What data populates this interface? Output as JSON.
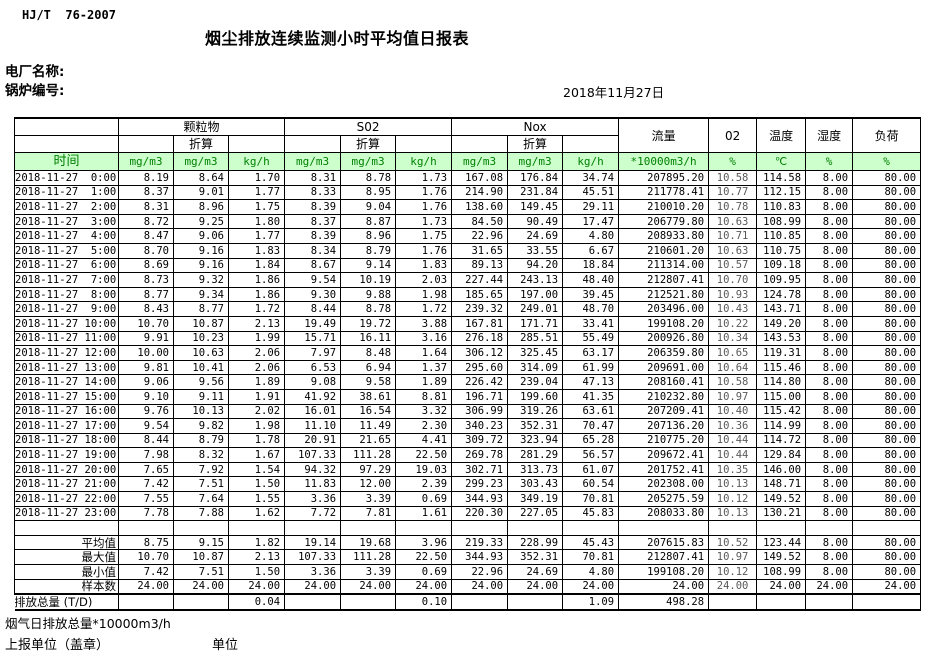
{
  "page": {
    "doc_code": "HJ/T  76-2007",
    "title": "烟尘排放连续监测小时平均值日报表",
    "plant_label": "电厂名称:",
    "boiler_label": "锅炉编号:",
    "date": "2018年11月27日"
  },
  "footer": {
    "total_note": "烟气日排放总量*10000m3/h",
    "report_unit": "上报单位（盖章）",
    "unit": "单位"
  },
  "colors": {
    "header_green_bg": "#ccffcc",
    "header_green_text": "#008000"
  },
  "table": {
    "time_label": "时间",
    "conv_label": "折算",
    "groups": [
      {
        "label": "颗粒物"
      },
      {
        "label": "S02"
      },
      {
        "label": "Nox"
      }
    ],
    "single_cols": [
      {
        "label": "流量"
      },
      {
        "label": "02"
      },
      {
        "label": "温度"
      },
      {
        "label": "湿度"
      },
      {
        "label": "负荷"
      }
    ],
    "units": [
      "mg/m3",
      "mg/m3",
      "kg/h",
      "mg/m3",
      "mg/m3",
      "kg/h",
      "mg/m3",
      "mg/m3",
      "kg/h",
      "*10000m3/h",
      "%",
      "℃",
      "%",
      "%"
    ],
    "rows": [
      {
        "time": "2018-11-27  0:00",
        "values": [
          "8.19",
          "8.64",
          "1.70",
          "8.31",
          "8.78",
          "1.73",
          "167.08",
          "176.84",
          "34.74",
          "207895.20",
          "10.58",
          "114.58",
          "8.00",
          "80.00"
        ]
      },
      {
        "time": "2018-11-27  1:00",
        "values": [
          "8.37",
          "9.01",
          "1.77",
          "8.33",
          "8.95",
          "1.76",
          "214.90",
          "231.84",
          "45.51",
          "211778.41",
          "10.77",
          "112.15",
          "8.00",
          "80.00"
        ]
      },
      {
        "time": "2018-11-27  2:00",
        "values": [
          "8.31",
          "8.96",
          "1.75",
          "8.39",
          "9.04",
          "1.76",
          "138.60",
          "149.45",
          "29.11",
          "210010.20",
          "10.78",
          "110.83",
          "8.00",
          "80.00"
        ]
      },
      {
        "time": "2018-11-27  3:00",
        "values": [
          "8.72",
          "9.25",
          "1.80",
          "8.37",
          "8.87",
          "1.73",
          "84.50",
          "90.49",
          "17.47",
          "206779.80",
          "10.63",
          "108.99",
          "8.00",
          "80.00"
        ]
      },
      {
        "time": "2018-11-27  4:00",
        "values": [
          "8.47",
          "9.06",
          "1.77",
          "8.39",
          "8.96",
          "1.75",
          "22.96",
          "24.69",
          "4.80",
          "208933.80",
          "10.71",
          "110.85",
          "8.00",
          "80.00"
        ]
      },
      {
        "time": "2018-11-27  5:00",
        "values": [
          "8.70",
          "9.16",
          "1.83",
          "8.34",
          "8.79",
          "1.76",
          "31.65",
          "33.55",
          "6.67",
          "210601.20",
          "10.63",
          "110.75",
          "8.00",
          "80.00"
        ]
      },
      {
        "time": "2018-11-27  6:00",
        "values": [
          "8.69",
          "9.16",
          "1.84",
          "8.67",
          "9.14",
          "1.83",
          "89.13",
          "94.20",
          "18.84",
          "211314.00",
          "10.57",
          "109.18",
          "8.00",
          "80.00"
        ]
      },
      {
        "time": "2018-11-27  7:00",
        "values": [
          "8.73",
          "9.32",
          "1.86",
          "9.54",
          "10.19",
          "2.03",
          "227.44",
          "243.13",
          "48.40",
          "212807.41",
          "10.70",
          "109.95",
          "8.00",
          "80.00"
        ]
      },
      {
        "time": "2018-11-27  8:00",
        "values": [
          "8.77",
          "9.34",
          "1.86",
          "9.30",
          "9.88",
          "1.98",
          "185.65",
          "197.00",
          "39.45",
          "212521.80",
          "10.93",
          "124.78",
          "8.00",
          "80.00"
        ]
      },
      {
        "time": "2018-11-27  9:00",
        "values": [
          "8.43",
          "8.77",
          "1.72",
          "8.44",
          "8.78",
          "1.72",
          "239.32",
          "249.01",
          "48.70",
          "203496.00",
          "10.43",
          "143.71",
          "8.00",
          "80.00"
        ]
      },
      {
        "time": "2018-11-27 10:00",
        "values": [
          "10.70",
          "10.87",
          "2.13",
          "19.49",
          "19.72",
          "3.88",
          "167.81",
          "171.71",
          "33.41",
          "199108.20",
          "10.22",
          "149.20",
          "8.00",
          "80.00"
        ]
      },
      {
        "time": "2018-11-27 11:00",
        "values": [
          "9.91",
          "10.23",
          "1.99",
          "15.71",
          "16.11",
          "3.16",
          "276.18",
          "285.51",
          "55.49",
          "200926.80",
          "10.34",
          "143.53",
          "8.00",
          "80.00"
        ]
      },
      {
        "time": "2018-11-27 12:00",
        "values": [
          "10.00",
          "10.63",
          "2.06",
          "7.97",
          "8.48",
          "1.64",
          "306.12",
          "325.45",
          "63.17",
          "206359.80",
          "10.65",
          "119.31",
          "8.00",
          "80.00"
        ]
      },
      {
        "time": "2018-11-27 13:00",
        "values": [
          "9.81",
          "10.41",
          "2.06",
          "6.53",
          "6.94",
          "1.37",
          "295.60",
          "314.09",
          "61.99",
          "209691.00",
          "10.64",
          "115.46",
          "8.00",
          "80.00"
        ]
      },
      {
        "time": "2018-11-27 14:00",
        "values": [
          "9.06",
          "9.56",
          "1.89",
          "9.08",
          "9.58",
          "1.89",
          "226.42",
          "239.04",
          "47.13",
          "208160.41",
          "10.58",
          "114.80",
          "8.00",
          "80.00"
        ]
      },
      {
        "time": "2018-11-27 15:00",
        "values": [
          "9.10",
          "9.11",
          "1.91",
          "41.92",
          "38.61",
          "8.81",
          "196.71",
          "199.60",
          "41.35",
          "210232.80",
          "10.97",
          "115.00",
          "8.00",
          "80.00"
        ]
      },
      {
        "time": "2018-11-27 16:00",
        "values": [
          "9.76",
          "10.13",
          "2.02",
          "16.01",
          "16.54",
          "3.32",
          "306.99",
          "319.26",
          "63.61",
          "207209.41",
          "10.40",
          "115.42",
          "8.00",
          "80.00"
        ]
      },
      {
        "time": "2018-11-27 17:00",
        "values": [
          "9.54",
          "9.82",
          "1.98",
          "11.10",
          "11.49",
          "2.30",
          "340.23",
          "352.31",
          "70.47",
          "207136.20",
          "10.36",
          "114.99",
          "8.00",
          "80.00"
        ]
      },
      {
        "time": "2018-11-27 18:00",
        "values": [
          "8.44",
          "8.79",
          "1.78",
          "20.91",
          "21.65",
          "4.41",
          "309.72",
          "323.94",
          "65.28",
          "210775.20",
          "10.44",
          "114.72",
          "8.00",
          "80.00"
        ]
      },
      {
        "time": "2018-11-27 19:00",
        "values": [
          "7.98",
          "8.32",
          "1.67",
          "107.33",
          "111.28",
          "22.50",
          "269.78",
          "281.29",
          "56.57",
          "209672.41",
          "10.44",
          "129.84",
          "8.00",
          "80.00"
        ]
      },
      {
        "time": "2018-11-27 20:00",
        "values": [
          "7.65",
          "7.92",
          "1.54",
          "94.32",
          "97.29",
          "19.03",
          "302.71",
          "313.73",
          "61.07",
          "201752.41",
          "10.35",
          "146.00",
          "8.00",
          "80.00"
        ]
      },
      {
        "time": "2018-11-27 21:00",
        "values": [
          "7.42",
          "7.51",
          "1.50",
          "11.83",
          "12.00",
          "2.39",
          "299.23",
          "303.43",
          "60.54",
          "202308.00",
          "10.13",
          "148.71",
          "8.00",
          "80.00"
        ]
      },
      {
        "time": "2018-11-27 22:00",
        "values": [
          "7.55",
          "7.64",
          "1.55",
          "3.36",
          "3.39",
          "0.69",
          "344.93",
          "349.19",
          "70.81",
          "205275.59",
          "10.12",
          "149.52",
          "8.00",
          "80.00"
        ]
      },
      {
        "time": "2018-11-27 23:00",
        "values": [
          "7.78",
          "7.88",
          "1.62",
          "7.72",
          "7.81",
          "1.61",
          "220.30",
          "227.05",
          "45.83",
          "208033.80",
          "10.13",
          "130.21",
          "8.00",
          "80.00"
        ]
      }
    ],
    "summary": [
      {
        "label": "平均值",
        "values": [
          "8.75",
          "9.15",
          "1.82",
          "19.14",
          "19.68",
          "3.96",
          "219.33",
          "228.99",
          "45.43",
          "207615.83",
          "10.52",
          "123.44",
          "8.00",
          "80.00"
        ]
      },
      {
        "label": "最大值",
        "values": [
          "10.70",
          "10.87",
          "2.13",
          "107.33",
          "111.28",
          "22.50",
          "344.93",
          "352.31",
          "70.81",
          "212807.41",
          "10.97",
          "149.52",
          "8.00",
          "80.00"
        ]
      },
      {
        "label": "最小值",
        "values": [
          "7.42",
          "7.51",
          "1.50",
          "3.36",
          "3.39",
          "0.69",
          "22.96",
          "24.69",
          "4.80",
          "199108.20",
          "10.12",
          "108.99",
          "8.00",
          "80.00"
        ]
      },
      {
        "label": "样本数",
        "values": [
          "24.00",
          "24.00",
          "24.00",
          "24.00",
          "24.00",
          "24.00",
          "24.00",
          "24.00",
          "24.00",
          "24.00",
          "24.00",
          "24.00",
          "24.00",
          "24.00"
        ]
      },
      {
        "label": "日排放总量 (T/D)",
        "values": [
          "",
          "",
          "0.04",
          "",
          "",
          "0.10",
          "",
          "",
          "1.09",
          "498.28",
          "",
          "",
          "",
          ""
        ]
      }
    ]
  }
}
